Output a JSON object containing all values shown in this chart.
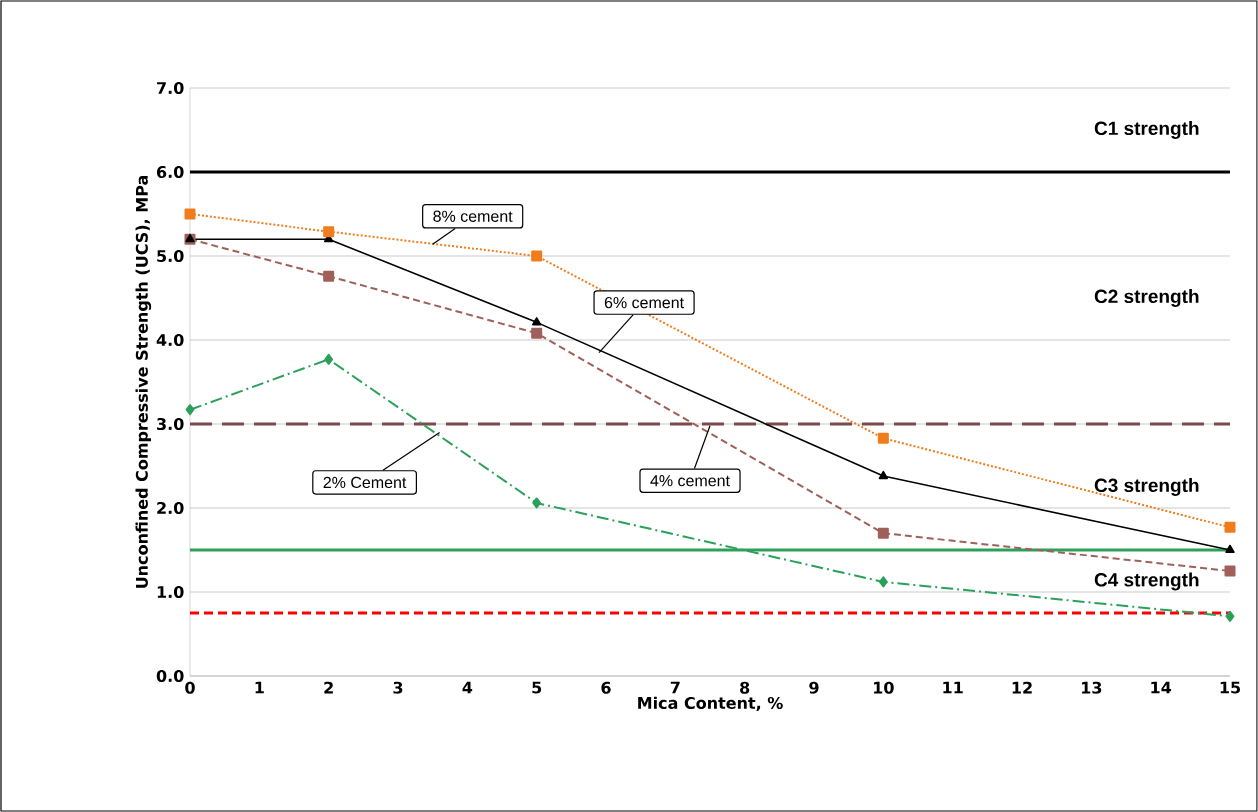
{
  "chart_data": {
    "type": "line",
    "xlabel": "Mica Content,  %",
    "ylabel": "Unconfined Compressive Strength  (UCS), MPa",
    "x": [
      0,
      2,
      5,
      10,
      15
    ],
    "series": [
      {
        "color": "#f07c1c",
        "values": [
          5.5,
          5.29,
          5.0,
          2.83,
          1.77
        ],
        "marker": "square",
        "line_style": "dotted"
      },
      {
        "color": "#000000",
        "values": [
          5.2,
          5.2,
          4.21,
          2.38,
          1.5
        ],
        "marker": "triangle",
        "line_style": "solid"
      },
      {
        "color": "#a0605a",
        "values": [
          5.2,
          4.76,
          4.08,
          1.7,
          1.25
        ],
        "marker": "square",
        "line_style": "dashed"
      },
      {
        "color": "#2aa05a",
        "values": [
          3.17,
          3.77,
          2.06,
          1.12,
          0.71
        ],
        "marker": "diamond",
        "line_style": "dashdot"
      }
    ],
    "ref_lines": [
      {
        "axis": "y",
        "value": 6,
        "color": "#000000",
        "line_style": "solid"
      },
      {
        "axis": "y",
        "value": 3,
        "color": "#7b4a4a",
        "line_style": "dashed"
      },
      {
        "axis": "y",
        "value": 1.5,
        "color": "#2ca05a",
        "line_style": "solid"
      },
      {
        "axis": "y",
        "value": 0.75,
        "color": "#ff0000",
        "line_style": "dashed"
      }
    ],
    "annotations": [
      "C1 strength",
      "C2 strength",
      "C3 strength",
      "C4 strength",
      {
        "text": "8% cement",
        "x": 3.5,
        "y": 5.14
      },
      {
        "text": "6% cement",
        "x": 5.9,
        "y": 3.85
      },
      {
        "text": "4% cement",
        "x": 7.5,
        "y": 2.98
      },
      {
        "text": "2% Cement",
        "x": 3.6,
        "y": 2.9
      }
    ],
    "xlim": [
      0,
      15
    ],
    "ylim": [
      0,
      7
    ],
    "xticks": [
      0,
      1,
      2,
      3,
      4,
      5,
      6,
      7,
      8,
      9,
      10,
      11,
      12,
      13,
      14,
      15
    ],
    "yticks": [
      {
        "value": 0,
        "label": "0.0"
      },
      {
        "value": 1,
        "label": "1.0"
      },
      {
        "value": 2,
        "label": "2.0"
      },
      {
        "value": 3,
        "label": "3.0"
      },
      {
        "value": 4,
        "label": "4.0"
      },
      {
        "value": 5,
        "label": "5.0"
      },
      {
        "value": 6,
        "label": "6.0"
      },
      {
        "value": 7,
        "label": "7.0"
      }
    ],
    "grid": "y"
  }
}
